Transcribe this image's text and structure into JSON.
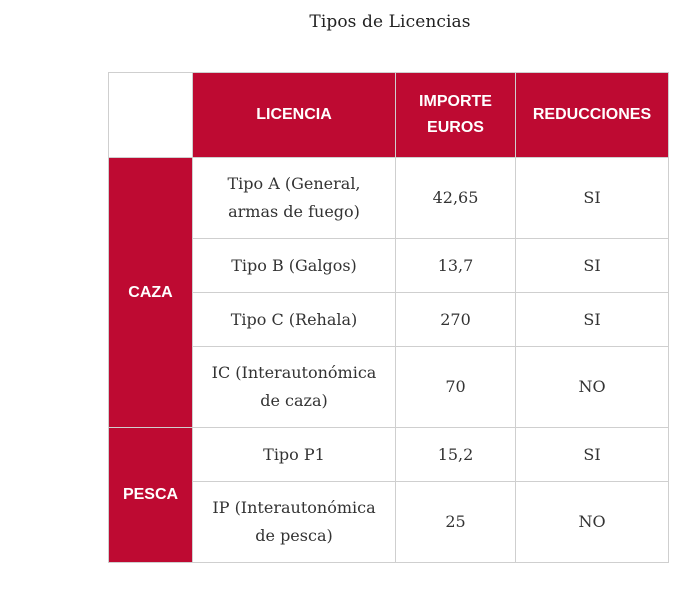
{
  "title": "Tipos de Licencias",
  "columns": {
    "licencia": "LICENCIA",
    "importe": "IMPORTE EUROS",
    "reducciones": "REDUCCIONES"
  },
  "groups": [
    {
      "name": "CAZA",
      "rows": [
        {
          "licencia": "Tipo A (General, armas de fuego)",
          "importe": "42,65",
          "reducciones": "SI"
        },
        {
          "licencia": "Tipo B (Galgos)",
          "importe": "13,7",
          "reducciones": "SI"
        },
        {
          "licencia": "Tipo C (Rehala)",
          "importe": "270",
          "reducciones": "SI"
        },
        {
          "licencia": "IC (Interautonómica de caza)",
          "importe": "70",
          "reducciones": "NO"
        }
      ]
    },
    {
      "name": "PESCA",
      "rows": [
        {
          "licencia": "Tipo P1",
          "importe": "15,2",
          "reducciones": "SI"
        },
        {
          "licencia": "IP (Interautonómica de pesca)",
          "importe": "25",
          "reducciones": "NO"
        }
      ]
    }
  ],
  "colors": {
    "header_bg": "#be0a32",
    "header_text": "#ffffff",
    "border": "#cfcfcf"
  }
}
